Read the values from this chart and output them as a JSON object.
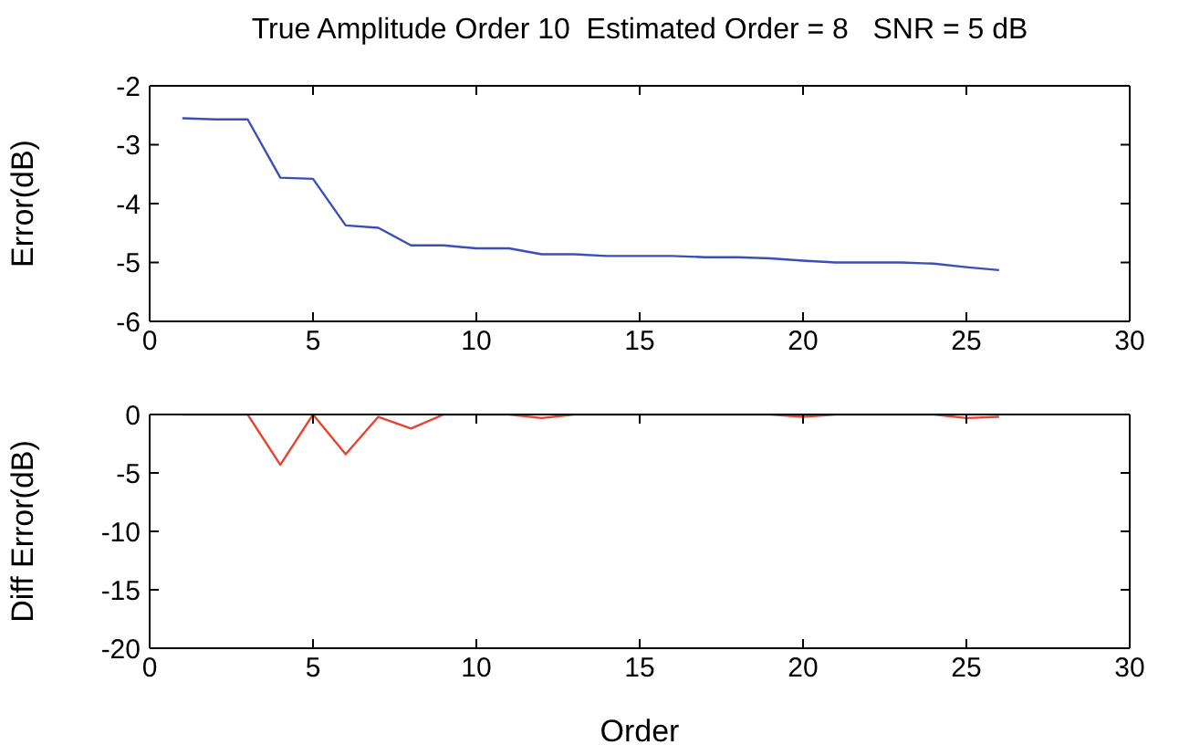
{
  "chart_data": [
    {
      "type": "line",
      "title": "True Amplitude Order 10  Estimated Order = 8   SNR = 5 dB",
      "ylabel": "Error(dB)",
      "x": [
        1,
        2,
        3,
        4,
        5,
        6,
        7,
        8,
        9,
        10,
        11,
        12,
        13,
        14,
        15,
        16,
        17,
        18,
        19,
        20,
        21,
        22,
        23,
        24,
        25,
        26
      ],
      "series": [
        {
          "color": "#3a4fb8",
          "values": [
            -2.55,
            -2.57,
            -2.57,
            -3.56,
            -3.58,
            -4.37,
            -4.41,
            -4.71,
            -4.71,
            -4.76,
            -4.76,
            -4.86,
            -4.86,
            -4.89,
            -4.89,
            -4.89,
            -4.91,
            -4.91,
            -4.93,
            -4.97,
            -5.0,
            -5.0,
            -5.0,
            -5.02,
            -5.08,
            -5.13
          ]
        }
      ],
      "xlim": [
        0,
        30
      ],
      "xticks": [
        0,
        5,
        10,
        15,
        20,
        25,
        30
      ],
      "ylim": [
        -6,
        -2
      ],
      "yticks": [
        -6,
        -5,
        -4,
        -3,
        -2
      ],
      "grid": false,
      "legend": false
    },
    {
      "type": "line",
      "xlabel": "Order",
      "ylabel": "Diff Error(dB)",
      "x": [
        1,
        2,
        3,
        4,
        5,
        6,
        7,
        8,
        9,
        10,
        11,
        12,
        13,
        14,
        15,
        16,
        17,
        18,
        19,
        20,
        21,
        22,
        23,
        24,
        25,
        26
      ],
      "series": [
        {
          "color": "#e8432e",
          "values": [
            0,
            0,
            0,
            -4.3,
            0,
            -3.4,
            -0.2,
            -1.2,
            0,
            0,
            0,
            -0.3,
            0,
            0,
            0,
            0,
            0,
            0,
            0,
            -0.2,
            0,
            0,
            0,
            0,
            -0.3,
            -0.2
          ]
        }
      ],
      "xlim": [
        0,
        30
      ],
      "xticks": [
        0,
        5,
        10,
        15,
        20,
        25,
        30
      ],
      "ylim": [
        -20,
        0
      ],
      "yticks": [
        -20,
        -15,
        -10,
        -5,
        0
      ],
      "grid": false,
      "legend": false
    }
  ]
}
